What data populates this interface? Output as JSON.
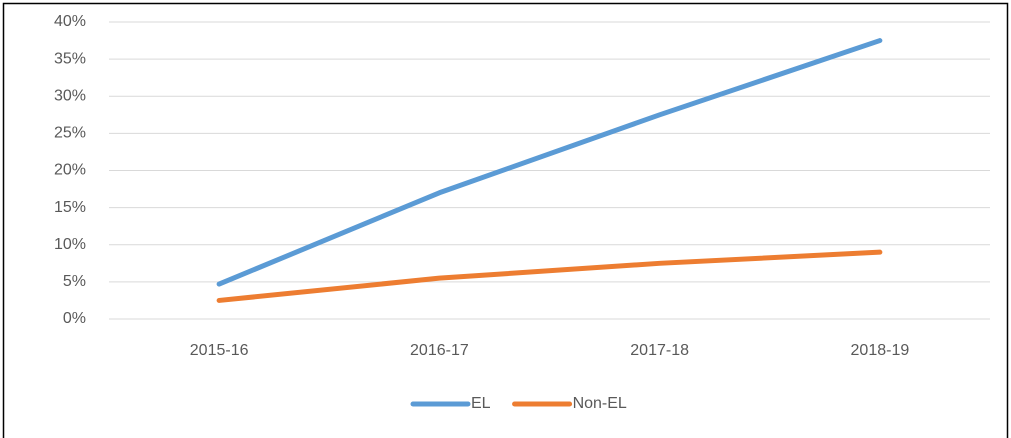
{
  "chart_data": {
    "type": "line",
    "categories": [
      "2015-16",
      "2016-17",
      "2017-18",
      "2018-19"
    ],
    "series": [
      {
        "name": "EL",
        "color": "#5b9bd5",
        "values": [
          4.7,
          17,
          27.5,
          37.5
        ]
      },
      {
        "name": "Non-EL",
        "color": "#ed7d31",
        "values": [
          2.5,
          5.5,
          7.5,
          9
        ]
      }
    ],
    "ylim": [
      0,
      40
    ],
    "yticks": [
      {
        "value": 0,
        "label": "0%"
      },
      {
        "value": 5,
        "label": "5%"
      },
      {
        "value": 10,
        "label": "10%"
      },
      {
        "value": 15,
        "label": "15%"
      },
      {
        "value": 20,
        "label": "20%"
      },
      {
        "value": 25,
        "label": "25%"
      },
      {
        "value": 30,
        "label": "30%"
      },
      {
        "value": 35,
        "label": "35%"
      },
      {
        "value": 40,
        "label": "40%"
      }
    ],
    "grid": true,
    "legend": "bottom"
  }
}
